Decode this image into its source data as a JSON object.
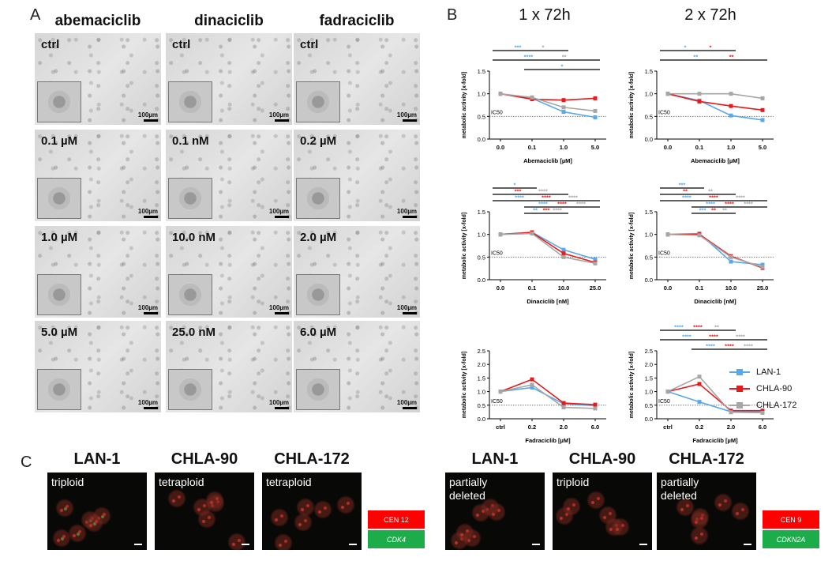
{
  "panel_a": {
    "letter": "A",
    "columns": [
      {
        "title": "abemaciclib",
        "conditions": [
          "ctrl",
          "0.1 µM",
          "1.0 µM",
          "5.0 µM"
        ]
      },
      {
        "title": "dinaciclib",
        "conditions": [
          "ctrl",
          "0.1 nM",
          "10.0 nM",
          "25.0 nM"
        ]
      },
      {
        "title": "fadraciclib",
        "conditions": [
          "ctrl",
          "0.2 µM",
          "2.0 µM",
          "6.0 µM"
        ]
      }
    ],
    "scale_label": "100µm"
  },
  "panel_b": {
    "letter": "B",
    "time_titles": [
      "1 x 72h",
      "2 x 72h"
    ],
    "ylabel": "metabolic activity [x-fold]",
    "ic50_label": "IC50",
    "legend": [
      {
        "name": "LAN-1",
        "color": "#5aa9e6"
      },
      {
        "name": "CHLA-90",
        "color": "#e41a1c"
      },
      {
        "name": "CHLA-172",
        "color": "#a6a6a6"
      }
    ]
  },
  "chart_data": [
    {
      "type": "line",
      "xlabel": "Abemaciclib [µM]",
      "ylabel": "metabolic activity [x-fold]",
      "categories": [
        "0.0",
        "0.1",
        "1.0",
        "5.0"
      ],
      "ylim": [
        0,
        1.5
      ],
      "yticks": [
        "0.0",
        "0.5",
        "1.0",
        "1.5"
      ],
      "ic50": 0.5,
      "series": [
        {
          "name": "LAN-1",
          "values": [
            1.0,
            0.9,
            0.6,
            0.48
          ]
        },
        {
          "name": "CHLA-90",
          "values": [
            1.0,
            0.88,
            0.86,
            0.9
          ]
        },
        {
          "name": "CHLA-172",
          "values": [
            1.0,
            0.92,
            0.7,
            0.62
          ]
        }
      ],
      "annotations": [
        {
          "color": "#5aa9e6",
          "stars": "***",
          "from": 0,
          "to": 2
        },
        {
          "color": "#a6a6a6",
          "stars": "*",
          "from": 0,
          "to": 2
        },
        {
          "color": "#5aa9e6",
          "stars": "****",
          "from": 0,
          "to": 3
        },
        {
          "color": "#a6a6a6",
          "stars": "**",
          "from": 0,
          "to": 3
        },
        {
          "color": "#5aa9e6",
          "stars": "*",
          "from": 1,
          "to": 3
        }
      ]
    },
    {
      "type": "line",
      "xlabel": "Abemaciclib [µM]",
      "ylabel": "metabolic activity [x-fold]",
      "categories": [
        "0.0",
        "0.1",
        "1.0",
        "5.0"
      ],
      "ylim": [
        0,
        1.5
      ],
      "yticks": [
        "0.0",
        "0.5",
        "1.0",
        "1.5"
      ],
      "ic50": 0.5,
      "series": [
        {
          "name": "LAN-1",
          "values": [
            1.0,
            0.85,
            0.52,
            0.42
          ]
        },
        {
          "name": "CHLA-90",
          "values": [
            1.0,
            0.83,
            0.73,
            0.64
          ]
        },
        {
          "name": "CHLA-172",
          "values": [
            1.0,
            1.0,
            1.0,
            0.9
          ]
        }
      ],
      "annotations": [
        {
          "color": "#5aa9e6",
          "stars": "*",
          "from": 0,
          "to": 2
        },
        {
          "color": "#e41a1c",
          "stars": "*",
          "from": 0,
          "to": 2
        },
        {
          "color": "#5aa9e6",
          "stars": "**",
          "from": 0,
          "to": 3
        },
        {
          "color": "#e41a1c",
          "stars": "**",
          "from": 0,
          "to": 3
        }
      ]
    },
    {
      "type": "line",
      "xlabel": "Dinaciclib [nM]",
      "ylabel": "metabolic activity [x-fold]",
      "categories": [
        "0.0",
        "0.1",
        "10.0",
        "25.0"
      ],
      "ylim": [
        0,
        1.5
      ],
      "yticks": [
        "0.0",
        "0.5",
        "1.0",
        "1.5"
      ],
      "ic50": 0.5,
      "series": [
        {
          "name": "LAN-1",
          "values": [
            1.0,
            1.05,
            0.66,
            0.45
          ]
        },
        {
          "name": "CHLA-90",
          "values": [
            1.0,
            1.04,
            0.58,
            0.38
          ]
        },
        {
          "name": "CHLA-172",
          "values": [
            1.0,
            1.02,
            0.5,
            0.36
          ]
        }
      ],
      "annotations": [
        {
          "color": "#5aa9e6",
          "stars": "*",
          "from": 0,
          "to": 1
        },
        {
          "color": "#e41a1c",
          "stars": "***",
          "from": 0,
          "to": 2
        },
        {
          "color": "#a6a6a6",
          "stars": "****",
          "from": 0,
          "to": 2
        },
        {
          "color": "#5aa9e6",
          "stars": "****",
          "from": 0,
          "to": 3
        },
        {
          "color": "#e41a1c",
          "stars": "****",
          "from": 0,
          "to": 3
        },
        {
          "color": "#a6a6a6",
          "stars": "****",
          "from": 0,
          "to": 3
        },
        {
          "color": "#5aa9e6",
          "stars": "****",
          "from": 1,
          "to": 3
        },
        {
          "color": "#e41a1c",
          "stars": "****",
          "from": 1,
          "to": 3
        },
        {
          "color": "#a6a6a6",
          "stars": "****",
          "from": 1,
          "to": 3
        },
        {
          "color": "#5aa9e6",
          "stars": "**",
          "from": 1,
          "to": 2
        },
        {
          "color": "#e41a1c",
          "stars": "***",
          "from": 1,
          "to": 2
        },
        {
          "color": "#a6a6a6",
          "stars": "****",
          "from": 1,
          "to": 2
        }
      ]
    },
    {
      "type": "line",
      "xlabel": "Dinaciclib [nM]",
      "ylabel": "metabolic activity [x-fold]",
      "categories": [
        "0.0",
        "0.1",
        "10.0",
        "25.0"
      ],
      "ylim": [
        0,
        1.5
      ],
      "yticks": [
        "0.0",
        "0.5",
        "1.0",
        "1.5"
      ],
      "ic50": 0.5,
      "series": [
        {
          "name": "LAN-1",
          "values": [
            1.0,
            1.02,
            0.4,
            0.33
          ]
        },
        {
          "name": "CHLA-90",
          "values": [
            1.0,
            1.0,
            0.52,
            0.26
          ]
        },
        {
          "name": "CHLA-172",
          "values": [
            1.0,
            0.98,
            0.5,
            0.28
          ]
        }
      ],
      "annotations": [
        {
          "color": "#5aa9e6",
          "stars": "***",
          "from": 0,
          "to": 1
        },
        {
          "color": "#e41a1c",
          "stars": "**",
          "from": 0,
          "to": 2
        },
        {
          "color": "#a6a6a6",
          "stars": "**",
          "from": 0,
          "to": 2
        },
        {
          "color": "#5aa9e6",
          "stars": "****",
          "from": 0,
          "to": 3
        },
        {
          "color": "#e41a1c",
          "stars": "****",
          "from": 0,
          "to": 3
        },
        {
          "color": "#a6a6a6",
          "stars": "****",
          "from": 0,
          "to": 3
        },
        {
          "color": "#5aa9e6",
          "stars": "****",
          "from": 1,
          "to": 3
        },
        {
          "color": "#e41a1c",
          "stars": "****",
          "from": 1,
          "to": 3
        },
        {
          "color": "#a6a6a6",
          "stars": "****",
          "from": 1,
          "to": 3
        },
        {
          "color": "#5aa9e6",
          "stars": "***",
          "from": 1,
          "to": 2
        },
        {
          "color": "#e41a1c",
          "stars": "**",
          "from": 1,
          "to": 2
        },
        {
          "color": "#a6a6a6",
          "stars": "**",
          "from": 1,
          "to": 2
        }
      ]
    },
    {
      "type": "line",
      "xlabel": "Fadraciclib [µM]",
      "ylabel": "metabolic activity [x-fold]",
      "categories": [
        "ctrl",
        "0.2",
        "2.0",
        "6.0"
      ],
      "ylim": [
        0,
        2.5
      ],
      "yticks": [
        "0.0",
        "0.5",
        "1.0",
        "1.5",
        "2.0",
        "2.5"
      ],
      "ic50": 0.5,
      "series": [
        {
          "name": "LAN-1",
          "values": [
            1.0,
            1.15,
            0.55,
            0.48
          ]
        },
        {
          "name": "CHLA-90",
          "values": [
            1.0,
            1.45,
            0.58,
            0.52
          ]
        },
        {
          "name": "CHLA-172",
          "values": [
            1.0,
            1.25,
            0.42,
            0.38
          ]
        }
      ],
      "annotations": []
    },
    {
      "type": "line",
      "xlabel": "Fadraciclib [µM]",
      "ylabel": "metabolic activity [x-fold]",
      "categories": [
        "ctrl",
        "0.2",
        "2.0",
        "6.0"
      ],
      "ylim": [
        0,
        2.5
      ],
      "yticks": [
        "0.0",
        "0.5",
        "1.0",
        "1.5",
        "2.0",
        "2.5"
      ],
      "ic50": 0.5,
      "series": [
        {
          "name": "LAN-1",
          "values": [
            1.0,
            0.62,
            0.26,
            0.26
          ]
        },
        {
          "name": "CHLA-90",
          "values": [
            1.0,
            1.28,
            0.3,
            0.3
          ]
        },
        {
          "name": "CHLA-172",
          "values": [
            1.0,
            1.55,
            0.24,
            0.22
          ]
        }
      ],
      "annotations": [
        {
          "color": "#5aa9e6",
          "stars": "****",
          "from": 0,
          "to": 2
        },
        {
          "color": "#e41a1c",
          "stars": "****",
          "from": 0,
          "to": 2
        },
        {
          "color": "#a6a6a6",
          "stars": "**",
          "from": 0,
          "to": 2
        },
        {
          "color": "#5aa9e6",
          "stars": "****",
          "from": 0,
          "to": 3
        },
        {
          "color": "#e41a1c",
          "stars": "****",
          "from": 0,
          "to": 3
        },
        {
          "color": "#a6a6a6",
          "stars": "****",
          "from": 0,
          "to": 3
        },
        {
          "color": "#5aa9e6",
          "stars": "****",
          "from": 1,
          "to": 3
        },
        {
          "color": "#e41a1c",
          "stars": "****",
          "from": 1,
          "to": 3
        },
        {
          "color": "#a6a6a6",
          "stars": "****",
          "from": 1,
          "to": 3
        }
      ]
    }
  ],
  "panel_c": {
    "letter": "C",
    "groups": [
      {
        "probe_red": "CEN 12",
        "probe_green": "CDK4",
        "cells": [
          {
            "line": "LAN-1",
            "note": "triploid"
          },
          {
            "line": "CHLA-90",
            "note": "tetraploid"
          },
          {
            "line": "CHLA-172",
            "note": "tetraploid"
          }
        ]
      },
      {
        "probe_red": "CEN 9",
        "probe_green": "CDKN2A",
        "cells": [
          {
            "line": "LAN-1",
            "note": "partially deleted"
          },
          {
            "line": "CHLA-90",
            "note": "triploid"
          },
          {
            "line": "CHLA-172",
            "note": "partially deleted"
          }
        ]
      }
    ]
  }
}
